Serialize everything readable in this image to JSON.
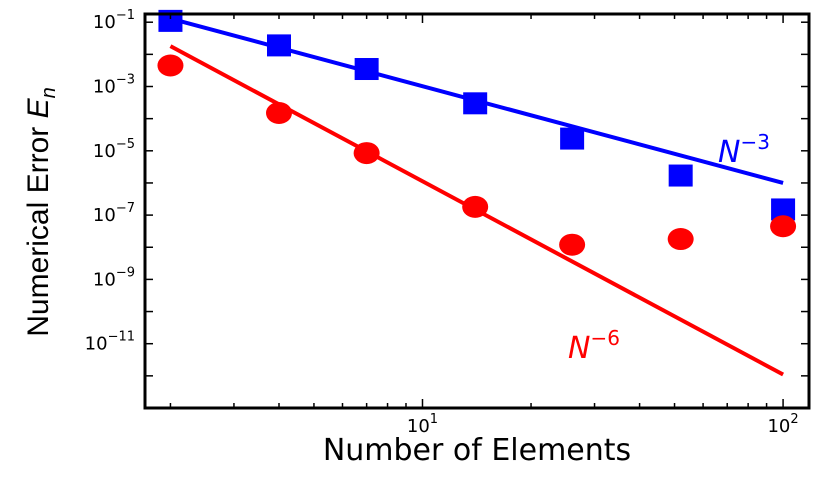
{
  "chart_data": {
    "type": "scatter",
    "title": "",
    "xlabel": "Number of Elements",
    "ylabel_main": "Numerical Error ",
    "ylabel_sym": "E",
    "ylabel_sub": "n",
    "xscale": "log",
    "yscale": "log",
    "xlim": [
      1.7,
      118
    ],
    "ylim": [
      1e-13,
      0.18
    ],
    "x_ticks": [
      {
        "value": 10,
        "base": "10",
        "exp": "1"
      },
      {
        "value": 100,
        "base": "10",
        "exp": "2"
      }
    ],
    "y_ticks": [
      {
        "value": 0.1,
        "base": "10",
        "exp": "−1"
      },
      {
        "value": 0.001,
        "base": "10",
        "exp": "−3"
      },
      {
        "value": 1e-05,
        "base": "10",
        "exp": "−5"
      },
      {
        "value": 1e-07,
        "base": "10",
        "exp": "−7"
      },
      {
        "value": 1e-09,
        "base": "10",
        "exp": "−9"
      },
      {
        "value": 1e-11,
        "base": "10",
        "exp": "−11"
      }
    ],
    "grid": false,
    "series": [
      {
        "marker": "square",
        "color": "#0000ff",
        "points": [
          {
            "x": 2,
            "y": 0.11
          },
          {
            "x": 4,
            "y": 0.019
          },
          {
            "x": 7,
            "y": 0.0035
          },
          {
            "x": 14,
            "y": 0.0003
          },
          {
            "x": 26,
            "y": 2.4e-05
          },
          {
            "x": 52,
            "y": 1.7e-06
          },
          {
            "x": 100,
            "y": 1.5e-07
          }
        ]
      },
      {
        "marker": "circle",
        "color": "#ff0000",
        "points": [
          {
            "x": 2,
            "y": 0.0045
          },
          {
            "x": 4,
            "y": 0.00015
          },
          {
            "x": 7,
            "y": 8.5e-06
          },
          {
            "x": 14,
            "y": 1.8e-07
          },
          {
            "x": 26,
            "y": 1.2e-08
          },
          {
            "x": 52,
            "y": 1.8e-08
          },
          {
            "x": 100,
            "y": 4.5e-08
          }
        ]
      }
    ],
    "fit_lines": [
      {
        "color": "#0000ff",
        "x": [
          2,
          100
        ],
        "y": [
          0.13,
          1e-06
        ],
        "label_base": "N",
        "label_exp": "−3"
      },
      {
        "color": "#ff0000",
        "x": [
          2,
          100
        ],
        "y": [
          0.018,
          1.1e-12
        ],
        "label_base": "N",
        "label_exp": "−6"
      }
    ]
  }
}
